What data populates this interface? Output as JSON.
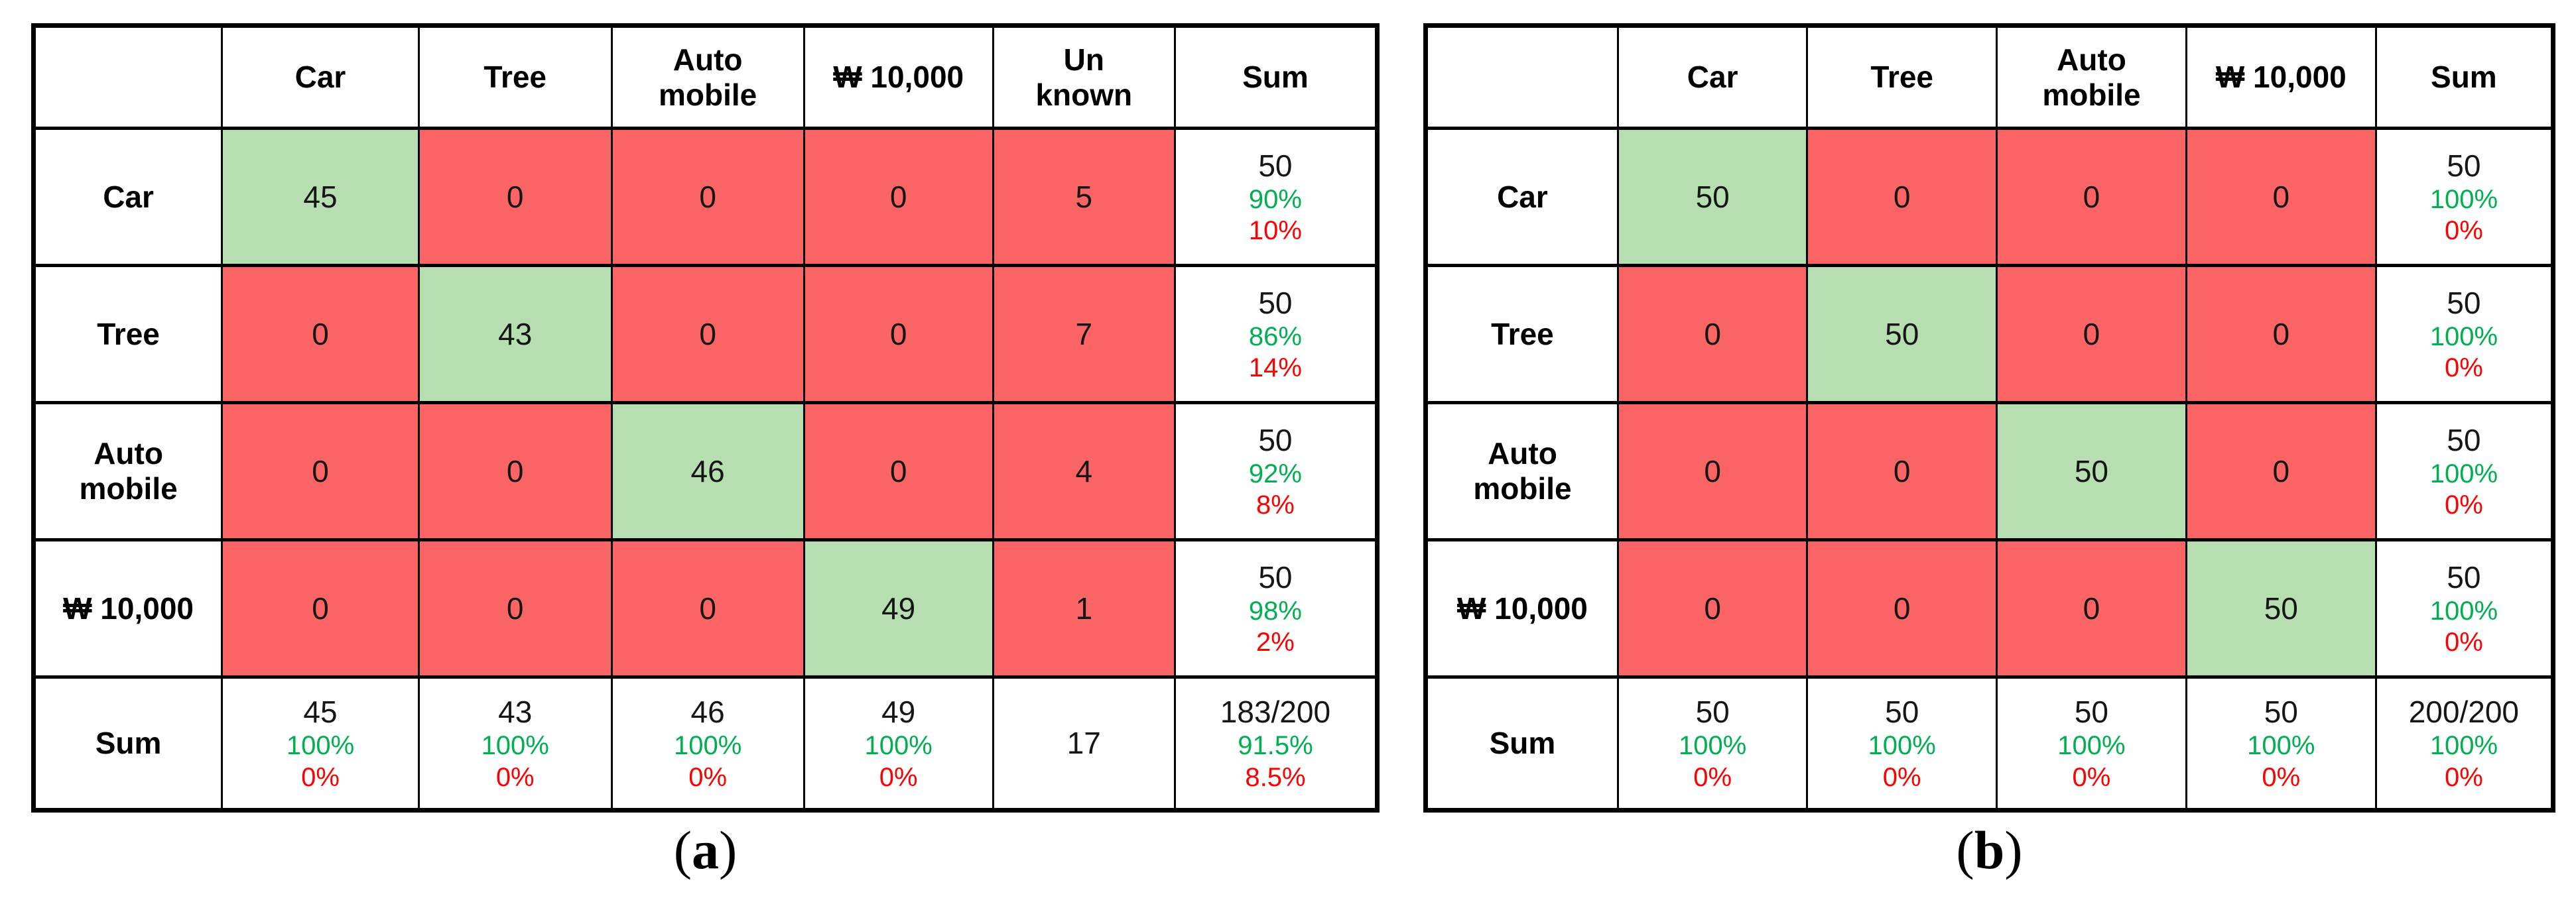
{
  "colors": {
    "diagonal_cell_bg": "#b7deb1",
    "off_diagonal_cell_bg": "#fa6464",
    "plain_cell_bg": "#ffffff",
    "correct_pct_text": "#00b050",
    "error_pct_text": "#ff0000",
    "value_text": "#161616",
    "border": "#000000"
  },
  "chart_data": [
    {
      "id": "a",
      "type": "table",
      "subtype": "confusion-matrix",
      "caption": {
        "open": "(",
        "letter": "a",
        "close": ")"
      },
      "corner_label": "",
      "sum_label": "Sum",
      "column_headers": [
        "Car",
        "Tree",
        "Auto\nmobile",
        "₩ 10,000",
        "Un\nknown",
        "Sum"
      ],
      "row_headers": [
        "Car",
        "Tree",
        "Auto\nmobile",
        "₩ 10,000",
        "Sum"
      ],
      "matrix": [
        [
          45,
          0,
          0,
          0,
          5
        ],
        [
          0,
          43,
          0,
          0,
          7
        ],
        [
          0,
          0,
          46,
          0,
          4
        ],
        [
          0,
          0,
          0,
          49,
          1
        ]
      ],
      "row_sums": [
        [
          "50",
          "90%",
          "10%"
        ],
        [
          "50",
          "86%",
          "14%"
        ],
        [
          "50",
          "92%",
          "8%"
        ],
        [
          "50",
          "98%",
          "2%"
        ]
      ],
      "column_sums": [
        [
          "45",
          "100%",
          "0%"
        ],
        [
          "43",
          "100%",
          "0%"
        ],
        [
          "46",
          "100%",
          "0%"
        ],
        [
          "49",
          "100%",
          "0%"
        ],
        [
          "17"
        ]
      ],
      "grand_sum": [
        "183/200",
        "91.5%",
        "8.5%"
      ]
    },
    {
      "id": "b",
      "type": "table",
      "subtype": "confusion-matrix",
      "caption": {
        "open": "(",
        "letter": "b",
        "close": ")"
      },
      "corner_label": "",
      "sum_label": "Sum",
      "column_headers": [
        "Car",
        "Tree",
        "Auto\nmobile",
        "₩ 10,000",
        "Sum"
      ],
      "row_headers": [
        "Car",
        "Tree",
        "Auto\nmobile",
        "₩ 10,000",
        "Sum"
      ],
      "matrix": [
        [
          50,
          0,
          0,
          0
        ],
        [
          0,
          50,
          0,
          0
        ],
        [
          0,
          0,
          50,
          0
        ],
        [
          0,
          0,
          0,
          50
        ]
      ],
      "row_sums": [
        [
          "50",
          "100%",
          "0%"
        ],
        [
          "50",
          "100%",
          "0%"
        ],
        [
          "50",
          "100%",
          "0%"
        ],
        [
          "50",
          "100%",
          "0%"
        ]
      ],
      "column_sums": [
        [
          "50",
          "100%",
          "0%"
        ],
        [
          "50",
          "100%",
          "0%"
        ],
        [
          "50",
          "100%",
          "0%"
        ],
        [
          "50",
          "100%",
          "0%"
        ]
      ],
      "grand_sum": [
        "200/200",
        "100%",
        "0%"
      ]
    }
  ]
}
